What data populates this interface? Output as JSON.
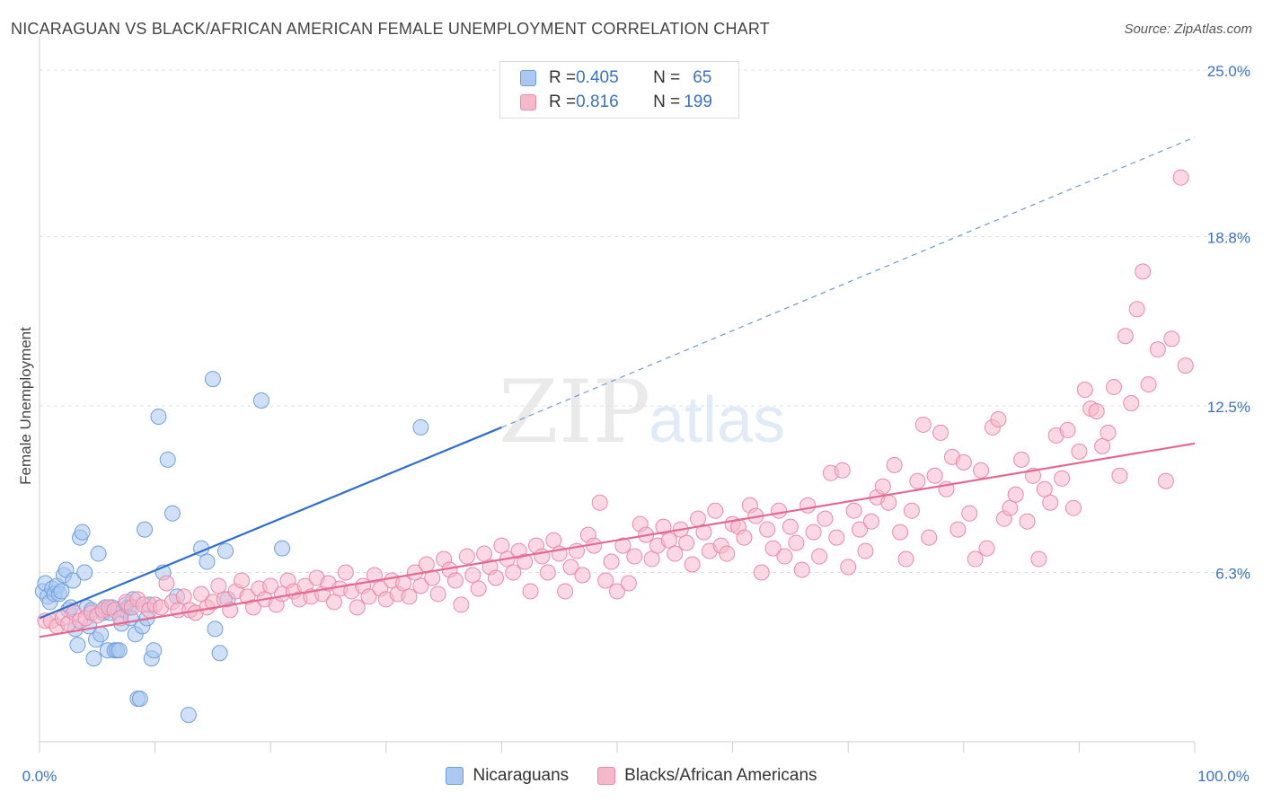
{
  "title": "NICARAGUAN VS BLACK/AFRICAN AMERICAN FEMALE UNEMPLOYMENT CORRELATION CHART",
  "source": "Source: ZipAtlas.com",
  "watermark": {
    "zip": "ZIP",
    "atlas": "atlas"
  },
  "legend": {
    "rows": [
      {
        "r_label": "R = ",
        "r_value": "0.405",
        "n_label": "N = ",
        "n_value": "65",
        "color": "#aac8f0",
        "border": "#6f9fdc"
      },
      {
        "r_label": "R = ",
        "r_value": "0.816",
        "n_label": "N = ",
        "n_value": "199",
        "color": "#f7b8cc",
        "border": "#e98aa8"
      }
    ]
  },
  "bottom_legend": [
    {
      "label": "Nicaraguans",
      "color": "#aac8f0",
      "border": "#6f9fdc"
    },
    {
      "label": "Blacks/African Americans",
      "color": "#f7b8cc",
      "border": "#e98aa8"
    }
  ],
  "chart_data": {
    "type": "scatter",
    "title": "NICARAGUAN VS BLACK/AFRICAN AMERICAN FEMALE UNEMPLOYMENT CORRELATION CHART",
    "xlabel": "",
    "ylabel": "Female Unemployment",
    "xlim": [
      0,
      100
    ],
    "ylim": [
      0,
      25
    ],
    "x_tick_labels": [
      "0.0%",
      "100.0%"
    ],
    "y_ticks": [
      6.3,
      12.5,
      18.8,
      25.0
    ],
    "y_tick_labels": [
      "6.3%",
      "12.5%",
      "18.8%",
      "25.0%"
    ],
    "grid": "horizontal dashed",
    "legend_placement": "top-center",
    "series": [
      {
        "name": "Nicaraguans",
        "color": "#6f9fdc",
        "fill": "#aac8f0",
        "r": 0.405,
        "n": 65,
        "trend": {
          "x0": 0,
          "y0": 4.6,
          "x1": 40,
          "y1": 11.7,
          "dashed_x1": 100,
          "dashed_y1": 22.5,
          "color": "#2f6fc9"
        },
        "points": [
          [
            0.3,
            5.6
          ],
          [
            0.5,
            5.9
          ],
          [
            0.7,
            5.4
          ],
          [
            0.9,
            5.2
          ],
          [
            1.1,
            5.7
          ],
          [
            1.3,
            5.5
          ],
          [
            1.5,
            5.8
          ],
          [
            1.7,
            5.5
          ],
          [
            1.9,
            5.6
          ],
          [
            2.1,
            6.2
          ],
          [
            2.3,
            6.4
          ],
          [
            2.5,
            4.9
          ],
          [
            2.7,
            5.0
          ],
          [
            2.9,
            6.0
          ],
          [
            3.1,
            4.2
          ],
          [
            3.3,
            3.6
          ],
          [
            3.5,
            7.6
          ],
          [
            3.7,
            7.8
          ],
          [
            3.9,
            6.3
          ],
          [
            4.1,
            5.0
          ],
          [
            4.3,
            4.3
          ],
          [
            4.5,
            4.9
          ],
          [
            4.7,
            3.1
          ],
          [
            4.9,
            3.8
          ],
          [
            5.1,
            7.0
          ],
          [
            5.3,
            4.0
          ],
          [
            5.5,
            4.8
          ],
          [
            5.7,
            5.0
          ],
          [
            5.9,
            3.4
          ],
          [
            6.1,
            4.8
          ],
          [
            6.3,
            5.0
          ],
          [
            6.5,
            3.4
          ],
          [
            6.7,
            3.4
          ],
          [
            6.9,
            3.4
          ],
          [
            7.1,
            4.4
          ],
          [
            7.3,
            4.9
          ],
          [
            7.5,
            5.1
          ],
          [
            7.7,
            5.0
          ],
          [
            7.9,
            4.6
          ],
          [
            8.1,
            5.3
          ],
          [
            8.3,
            4.0
          ],
          [
            8.5,
            1.6
          ],
          [
            8.7,
            1.6
          ],
          [
            8.9,
            4.3
          ],
          [
            9.1,
            7.9
          ],
          [
            9.3,
            4.6
          ],
          [
            9.5,
            5.1
          ],
          [
            9.7,
            3.1
          ],
          [
            9.9,
            3.4
          ],
          [
            10.3,
            12.1
          ],
          [
            10.7,
            6.3
          ],
          [
            11.1,
            10.5
          ],
          [
            11.5,
            8.5
          ],
          [
            11.9,
            5.4
          ],
          [
            12.9,
            1.0
          ],
          [
            14.0,
            7.2
          ],
          [
            14.5,
            6.7
          ],
          [
            15.0,
            13.5
          ],
          [
            15.2,
            4.2
          ],
          [
            15.6,
            3.3
          ],
          [
            16.1,
            7.1
          ],
          [
            16.3,
            5.3
          ],
          [
            19.2,
            12.7
          ],
          [
            21.0,
            7.2
          ],
          [
            33.0,
            11.7
          ]
        ]
      },
      {
        "name": "Blacks/African Americans",
        "color": "#e98aa8",
        "fill": "#f7b8cc",
        "r": 0.816,
        "n": 199,
        "trend": {
          "x0": 0,
          "y0": 3.9,
          "x1": 100,
          "y1": 11.1,
          "color": "#e26a92"
        },
        "points": [
          [
            0.5,
            4.5
          ],
          [
            1.0,
            4.5
          ],
          [
            1.5,
            4.3
          ],
          [
            2.0,
            4.6
          ],
          [
            2.5,
            4.4
          ],
          [
            3.0,
            4.8
          ],
          [
            3.5,
            4.5
          ],
          [
            4.0,
            4.6
          ],
          [
            4.5,
            4.8
          ],
          [
            5.0,
            4.7
          ],
          [
            5.5,
            4.9
          ],
          [
            6.0,
            5.0
          ],
          [
            6.5,
            4.9
          ],
          [
            7.0,
            4.6
          ],
          [
            7.5,
            5.2
          ],
          [
            8.0,
            5.0
          ],
          [
            8.5,
            5.3
          ],
          [
            9.0,
            5.1
          ],
          [
            9.5,
            4.9
          ],
          [
            10.0,
            5.1
          ],
          [
            10.5,
            5.0
          ],
          [
            11.0,
            5.9
          ],
          [
            11.5,
            5.2
          ],
          [
            12.0,
            4.9
          ],
          [
            12.5,
            5.4
          ],
          [
            13.0,
            4.9
          ],
          [
            13.5,
            4.8
          ],
          [
            14.0,
            5.5
          ],
          [
            14.5,
            5.0
          ],
          [
            15.0,
            5.2
          ],
          [
            15.5,
            5.8
          ],
          [
            16.0,
            5.3
          ],
          [
            16.5,
            4.9
          ],
          [
            17.0,
            5.6
          ],
          [
            17.5,
            6.0
          ],
          [
            18.0,
            5.4
          ],
          [
            18.5,
            5.0
          ],
          [
            19.0,
            5.7
          ],
          [
            19.5,
            5.3
          ],
          [
            20.0,
            5.8
          ],
          [
            20.5,
            5.1
          ],
          [
            21.0,
            5.5
          ],
          [
            21.5,
            6.0
          ],
          [
            22.0,
            5.6
          ],
          [
            22.5,
            5.3
          ],
          [
            23.0,
            5.8
          ],
          [
            23.5,
            5.4
          ],
          [
            24.0,
            6.1
          ],
          [
            24.5,
            5.5
          ],
          [
            25.0,
            5.9
          ],
          [
            25.5,
            5.2
          ],
          [
            26.0,
            5.7
          ],
          [
            26.5,
            6.3
          ],
          [
            27.0,
            5.6
          ],
          [
            27.5,
            5.0
          ],
          [
            28.0,
            5.8
          ],
          [
            28.5,
            5.4
          ],
          [
            29.0,
            6.2
          ],
          [
            29.5,
            5.7
          ],
          [
            30.0,
            5.3
          ],
          [
            30.5,
            6.0
          ],
          [
            31.0,
            5.5
          ],
          [
            31.5,
            5.9
          ],
          [
            32.0,
            5.4
          ],
          [
            32.5,
            6.3
          ],
          [
            33.0,
            5.8
          ],
          [
            33.5,
            6.6
          ],
          [
            34.0,
            6.1
          ],
          [
            34.5,
            5.5
          ],
          [
            35.0,
            6.8
          ],
          [
            35.5,
            6.4
          ],
          [
            36.0,
            6.0
          ],
          [
            36.5,
            5.1
          ],
          [
            37.0,
            6.9
          ],
          [
            37.5,
            6.2
          ],
          [
            38.0,
            5.7
          ],
          [
            38.5,
            7.0
          ],
          [
            39.0,
            6.5
          ],
          [
            39.5,
            6.1
          ],
          [
            40.0,
            7.3
          ],
          [
            40.5,
            6.8
          ],
          [
            41.0,
            6.3
          ],
          [
            41.5,
            7.1
          ],
          [
            42.0,
            6.7
          ],
          [
            42.5,
            5.6
          ],
          [
            43.0,
            7.3
          ],
          [
            43.5,
            6.9
          ],
          [
            44.0,
            6.3
          ],
          [
            44.5,
            7.5
          ],
          [
            45.0,
            7.0
          ],
          [
            45.5,
            5.6
          ],
          [
            46.0,
            6.5
          ],
          [
            46.5,
            7.1
          ],
          [
            47.0,
            6.2
          ],
          [
            47.5,
            7.7
          ],
          [
            48.0,
            7.3
          ],
          [
            48.5,
            8.9
          ],
          [
            49.0,
            6.0
          ],
          [
            49.5,
            6.7
          ],
          [
            50.0,
            5.6
          ],
          [
            50.5,
            7.3
          ],
          [
            51.0,
            5.9
          ],
          [
            51.5,
            6.9
          ],
          [
            52.0,
            8.1
          ],
          [
            52.5,
            7.7
          ],
          [
            53.0,
            6.8
          ],
          [
            53.5,
            7.3
          ],
          [
            54.0,
            8.0
          ],
          [
            54.5,
            7.5
          ],
          [
            55.0,
            7.0
          ],
          [
            55.5,
            7.9
          ],
          [
            56.0,
            7.4
          ],
          [
            56.5,
            6.6
          ],
          [
            57.0,
            8.3
          ],
          [
            57.5,
            7.8
          ],
          [
            58.0,
            7.1
          ],
          [
            58.5,
            8.6
          ],
          [
            59.0,
            7.3
          ],
          [
            59.5,
            7.0
          ],
          [
            60.0,
            8.1
          ],
          [
            60.5,
            8.0
          ],
          [
            61.0,
            7.6
          ],
          [
            61.5,
            8.8
          ],
          [
            62.0,
            8.4
          ],
          [
            62.5,
            6.3
          ],
          [
            63.0,
            7.9
          ],
          [
            63.5,
            7.2
          ],
          [
            64.0,
            8.6
          ],
          [
            64.5,
            6.9
          ],
          [
            65.0,
            8.0
          ],
          [
            65.5,
            7.4
          ],
          [
            66.0,
            6.4
          ],
          [
            66.5,
            8.8
          ],
          [
            67.0,
            7.8
          ],
          [
            67.5,
            6.9
          ],
          [
            68.0,
            8.3
          ],
          [
            68.5,
            10.0
          ],
          [
            69.0,
            7.6
          ],
          [
            69.5,
            10.1
          ],
          [
            70.0,
            6.5
          ],
          [
            70.5,
            8.6
          ],
          [
            71.0,
            7.9
          ],
          [
            71.5,
            7.1
          ],
          [
            72.0,
            8.2
          ],
          [
            72.5,
            9.1
          ],
          [
            73.0,
            9.5
          ],
          [
            73.5,
            8.9
          ],
          [
            74.0,
            10.3
          ],
          [
            74.5,
            7.8
          ],
          [
            75.0,
            6.8
          ],
          [
            75.5,
            8.6
          ],
          [
            76.0,
            9.7
          ],
          [
            76.5,
            11.8
          ],
          [
            77.0,
            7.6
          ],
          [
            77.5,
            9.9
          ],
          [
            78.0,
            11.5
          ],
          [
            78.5,
            9.4
          ],
          [
            79.0,
            10.6
          ],
          [
            79.5,
            7.9
          ],
          [
            80.0,
            10.4
          ],
          [
            80.5,
            8.5
          ],
          [
            81.0,
            6.8
          ],
          [
            81.5,
            10.1
          ],
          [
            82.0,
            7.2
          ],
          [
            82.5,
            11.7
          ],
          [
            83.0,
            12.0
          ],
          [
            83.5,
            8.3
          ],
          [
            84.0,
            8.7
          ],
          [
            84.5,
            9.2
          ],
          [
            85.0,
            10.5
          ],
          [
            85.5,
            8.2
          ],
          [
            86.0,
            9.9
          ],
          [
            86.5,
            6.8
          ],
          [
            87.0,
            9.4
          ],
          [
            87.5,
            8.9
          ],
          [
            88.0,
            11.4
          ],
          [
            88.5,
            9.8
          ],
          [
            89.0,
            11.6
          ],
          [
            89.5,
            8.7
          ],
          [
            90.0,
            10.8
          ],
          [
            90.5,
            13.1
          ],
          [
            91.0,
            12.4
          ],
          [
            91.5,
            12.3
          ],
          [
            92.0,
            11.0
          ],
          [
            92.5,
            11.5
          ],
          [
            93.0,
            13.2
          ],
          [
            93.5,
            9.9
          ],
          [
            94.0,
            15.1
          ],
          [
            94.5,
            12.6
          ],
          [
            95.0,
            16.1
          ],
          [
            95.5,
            17.5
          ],
          [
            96.0,
            13.3
          ],
          [
            96.8,
            14.6
          ],
          [
            97.5,
            9.7
          ],
          [
            98.0,
            15.0
          ],
          [
            98.8,
            21.0
          ],
          [
            99.2,
            14.0
          ]
        ]
      }
    ]
  }
}
